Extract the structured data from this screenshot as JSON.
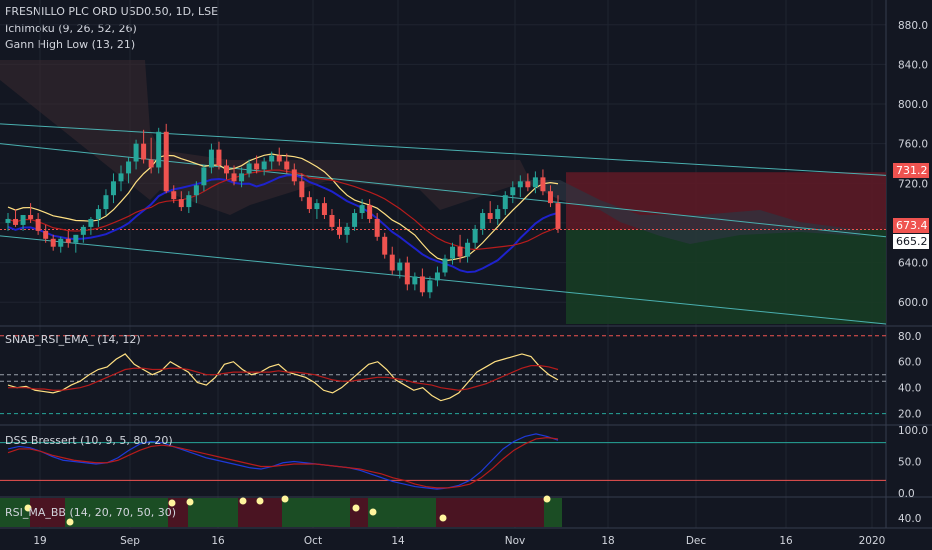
{
  "header": {
    "symbol_line": "FRESNILLO PLC ORD USD0.50, 1D, LSE",
    "indicator_1": "Ichimoku (9, 26, 52, 26)",
    "indicator_2": "Gann High Low (13, 21)"
  },
  "panels": {
    "rsi_ema": {
      "label": "SNAB_RSI_EMA_ (14, 12)"
    },
    "dss": {
      "label": "DSS Bressert (10, 9, 5, 80, 20)"
    },
    "rsi_ma_bb": {
      "label": "RSI_MA_BB (14, 20, 70, 50, 30)"
    }
  },
  "price_tags": {
    "upper": {
      "text": "731.2",
      "color": "#ef5350"
    },
    "current": {
      "text": "673.4",
      "color": "#ef5350"
    },
    "lower": {
      "text": "665.2",
      "color": "#131722"
    }
  },
  "colors": {
    "up": "#26a69a",
    "down": "#ef5350",
    "gann": "#ffe082",
    "blue_line": "#1e22cc",
    "red_line": "#b71c1c",
    "channel": "#4ab0b0",
    "loss_zone": "#5c1a26",
    "profit_zone": "#173c24",
    "bg": "#131722",
    "grid": "#1f2430"
  },
  "chart_data": [
    {
      "type": "candlestick",
      "title": "FRESNILLO PLC ORD USD0.50, 1D, LSE",
      "x_tick_labels": [
        "19",
        "Sep",
        "16",
        "Oct",
        "14",
        "Nov",
        "18",
        "Dec",
        "16",
        "2020"
      ],
      "y_tick_labels": [
        "600.0",
        "640.0",
        "680.0",
        "720.0",
        "760.0",
        "800.0",
        "840.0",
        "880.0"
      ],
      "ylim": [
        578,
        905
      ],
      "candles": [
        [
          680,
          690,
          672,
          684
        ],
        [
          684,
          694,
          676,
          678
        ],
        [
          678,
          686,
          672,
          688
        ],
        [
          688,
          700,
          680,
          684
        ],
        [
          684,
          690,
          668,
          672
        ],
        [
          672,
          678,
          660,
          664
        ],
        [
          664,
          668,
          652,
          656
        ],
        [
          656,
          666,
          650,
          664
        ],
        [
          664,
          672,
          655,
          660
        ],
        [
          660,
          668,
          650,
          668
        ],
        [
          668,
          678,
          660,
          676
        ],
        [
          676,
          686,
          668,
          684
        ],
        [
          684,
          698,
          676,
          694
        ],
        [
          694,
          714,
          688,
          708
        ],
        [
          708,
          730,
          700,
          722
        ],
        [
          722,
          738,
          712,
          730
        ],
        [
          730,
          746,
          720,
          742
        ],
        [
          742,
          764,
          734,
          760
        ],
        [
          760,
          774,
          740,
          744
        ],
        [
          744,
          766,
          730,
          736
        ],
        [
          736,
          776,
          730,
          772
        ],
        [
          772,
          780,
          710,
          712
        ],
        [
          712,
          718,
          700,
          704
        ],
        [
          704,
          712,
          692,
          696
        ],
        [
          696,
          712,
          690,
          708
        ],
        [
          708,
          722,
          700,
          718
        ],
        [
          718,
          738,
          712,
          736
        ],
        [
          736,
          760,
          730,
          754
        ],
        [
          754,
          762,
          734,
          738
        ],
        [
          738,
          744,
          724,
          730
        ],
        [
          730,
          738,
          718,
          722
        ],
        [
          722,
          736,
          716,
          730
        ],
        [
          730,
          744,
          726,
          740
        ],
        [
          740,
          748,
          730,
          734
        ],
        [
          734,
          746,
          728,
          742
        ],
        [
          742,
          752,
          734,
          748
        ],
        [
          748,
          756,
          738,
          742
        ],
        [
          742,
          750,
          730,
          734
        ],
        [
          734,
          740,
          718,
          722
        ],
        [
          722,
          730,
          702,
          706
        ],
        [
          706,
          712,
          690,
          694
        ],
        [
          694,
          704,
          684,
          700
        ],
        [
          700,
          706,
          684,
          688
        ],
        [
          688,
          694,
          672,
          676
        ],
        [
          676,
          684,
          664,
          668
        ],
        [
          668,
          680,
          660,
          676
        ],
        [
          676,
          694,
          672,
          690
        ],
        [
          690,
          704,
          684,
          698
        ],
        [
          698,
          704,
          680,
          684
        ],
        [
          684,
          690,
          662,
          666
        ],
        [
          666,
          670,
          644,
          648
        ],
        [
          648,
          656,
          628,
          632
        ],
        [
          632,
          644,
          624,
          640
        ],
        [
          640,
          646,
          612,
          618
        ],
        [
          618,
          630,
          612,
          626
        ],
        [
          626,
          634,
          606,
          610
        ],
        [
          610,
          626,
          604,
          622
        ],
        [
          622,
          636,
          616,
          630
        ],
        [
          630,
          648,
          626,
          644
        ],
        [
          644,
          660,
          638,
          656
        ],
        [
          656,
          668,
          640,
          646
        ],
        [
          646,
          664,
          640,
          660
        ],
        [
          660,
          678,
          654,
          674
        ],
        [
          674,
          694,
          668,
          690
        ],
        [
          690,
          702,
          680,
          684
        ],
        [
          684,
          698,
          678,
          694
        ],
        [
          694,
          712,
          688,
          708
        ],
        [
          708,
          722,
          700,
          716
        ],
        [
          716,
          728,
          706,
          722
        ],
        [
          722,
          730,
          712,
          716
        ],
        [
          716,
          732,
          710,
          726
        ],
        [
          726,
          734,
          708,
          712
        ],
        [
          712,
          718,
          696,
          700
        ],
        [
          700,
          708,
          670,
          674
        ]
      ],
      "channel_lines": [
        {
          "x0": 0,
          "y0": 780,
          "x1": 75,
          "y1": 728
        },
        {
          "x0": 0,
          "y0": 667,
          "x1": 75,
          "y1": 578
        },
        {
          "x0": 0,
          "y0": 760,
          "x1": 75,
          "y1": 666
        }
      ],
      "tags": [
        "731.2",
        "673.4",
        "665.2"
      ]
    },
    {
      "type": "line",
      "title": "SNAB_RSI_EMA_ (14, 12)",
      "y_tick_labels": [
        "20.0",
        "40.0",
        "60.0",
        "80.0"
      ],
      "ylim": [
        12,
        86
      ],
      "levels": [
        80,
        50,
        45,
        20
      ],
      "series": [
        {
          "values": [
            42,
            40,
            41,
            38,
            37,
            36,
            38,
            42,
            45,
            50,
            54,
            56,
            62,
            66,
            58,
            54,
            50,
            53,
            60,
            56,
            52,
            44,
            42,
            48,
            58,
            60,
            54,
            50,
            52,
            56,
            58,
            52,
            50,
            48,
            44,
            38,
            36,
            40,
            46,
            52,
            58,
            60,
            54,
            46,
            42,
            38,
            40,
            34,
            30,
            32,
            36,
            44,
            52,
            56,
            60,
            62,
            64,
            66,
            64,
            56,
            50,
            46
          ]
        },
        {
          "values": [
            40,
            40,
            40,
            39,
            39,
            38,
            38,
            39,
            40,
            42,
            45,
            48,
            51,
            54,
            55,
            55,
            54,
            54,
            55,
            55,
            54,
            52,
            50,
            50,
            51,
            52,
            52,
            52,
            52,
            52,
            53,
            52,
            52,
            51,
            50,
            48,
            46,
            45,
            45,
            46,
            47,
            48,
            48,
            47,
            46,
            44,
            43,
            42,
            40,
            39,
            38,
            39,
            41,
            43,
            46,
            49,
            52,
            55,
            57,
            57,
            56,
            54
          ]
        }
      ]
    },
    {
      "type": "line",
      "title": "DSS Bressert (10, 9, 5, 80, 20)",
      "y_tick_labels": [
        "0.0",
        "50.0",
        "100.0"
      ],
      "ylim": [
        -5,
        105
      ],
      "levels": [
        80,
        20
      ],
      "series": [
        {
          "values": [
            70,
            74,
            72,
            66,
            58,
            52,
            50,
            48,
            46,
            48,
            56,
            68,
            78,
            82,
            80,
            74,
            68,
            62,
            56,
            52,
            48,
            44,
            40,
            38,
            42,
            48,
            50,
            48,
            46,
            44,
            42,
            40,
            36,
            30,
            24,
            18,
            14,
            10,
            8,
            6,
            8,
            12,
            20,
            34,
            52,
            70,
            82,
            90,
            94,
            90,
            84
          ]
        },
        {
          "values": [
            64,
            70,
            70,
            66,
            60,
            56,
            52,
            50,
            48,
            48,
            52,
            60,
            68,
            74,
            76,
            74,
            70,
            66,
            62,
            58,
            54,
            50,
            46,
            42,
            42,
            44,
            46,
            46,
            46,
            44,
            42,
            40,
            38,
            34,
            30,
            24,
            20,
            14,
            10,
            8,
            8,
            10,
            14,
            24,
            38,
            54,
            68,
            78,
            86,
            88,
            86
          ]
        }
      ]
    },
    {
      "type": "heatmap",
      "title": "RSI_MA_BB (14, 20, 70, 50, 30)",
      "y_tick_labels": [
        "40.0"
      ],
      "bands": [
        "green",
        "maroon",
        "green",
        "maroon",
        "green",
        "maroon",
        "green",
        "maroon",
        "green",
        "maroon"
      ],
      "dots": 11
    }
  ]
}
